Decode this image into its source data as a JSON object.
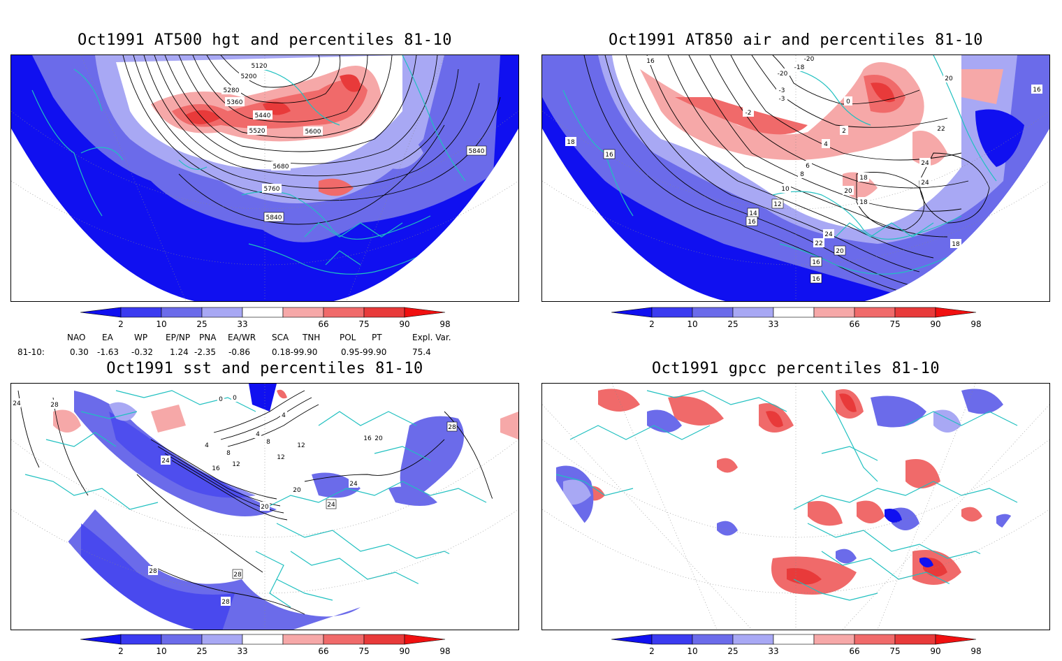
{
  "panels": [
    {
      "title": "Oct1991 AT500 hgt and percentiles 81-10",
      "contour_labels": [
        "5120",
        "5200",
        "5280",
        "5360",
        "5440",
        "5520",
        "5600",
        "5680",
        "5760",
        "5840",
        "5840"
      ]
    },
    {
      "title": "Oct1991 AT850 air and percentiles 81-10",
      "contour_labels": [
        "16",
        "-20",
        "-18",
        "-20",
        "-3",
        "-3",
        "-2",
        "0",
        "2",
        "4",
        "6",
        "8",
        "10",
        "12",
        "14",
        "16",
        "16",
        "18",
        "20",
        "22",
        "22",
        "24",
        "24",
        "18",
        "20",
        "18",
        "16",
        "16",
        "20",
        "18",
        "16",
        "24"
      ]
    },
    {
      "title": "Oct1991 sst and percentiles 81-10",
      "contour_labels": [
        "24",
        "28",
        "0",
        "0",
        "4",
        "4",
        "4",
        "8",
        "8",
        "12",
        "12",
        "16",
        "24",
        "20",
        "20",
        "24",
        "24",
        "12",
        "16",
        "20",
        "28",
        "28",
        "28",
        "28"
      ]
    },
    {
      "title": "Oct1991 gpcc percentiles 81-10",
      "contour_labels": []
    }
  ],
  "colorbar": {
    "labels": [
      "2",
      "10",
      "25",
      "33",
      "66",
      "75",
      "90",
      "98"
    ],
    "colors": [
      "#1010f0",
      "#3b3bf0",
      "#6b6bea",
      "#a8a8f4",
      "#ffffff",
      "#f6a8a8",
      "#f06a6a",
      "#e83a3a",
      "#f01010"
    ]
  },
  "teleconnections": {
    "headers": [
      "NAO",
      "EA",
      "WP",
      "EP/NP",
      "PNA",
      "EA/WR",
      "SCA",
      "TNH",
      "POL",
      "PT",
      "Expl. Var."
    ],
    "row_label": "81-10:",
    "values": [
      "0.30",
      "-1.63",
      "-0.32",
      "1.24",
      "-2.35",
      "-0.86",
      "0.18-99.90",
      "0.95-99.90",
      "75.4"
    ]
  }
}
